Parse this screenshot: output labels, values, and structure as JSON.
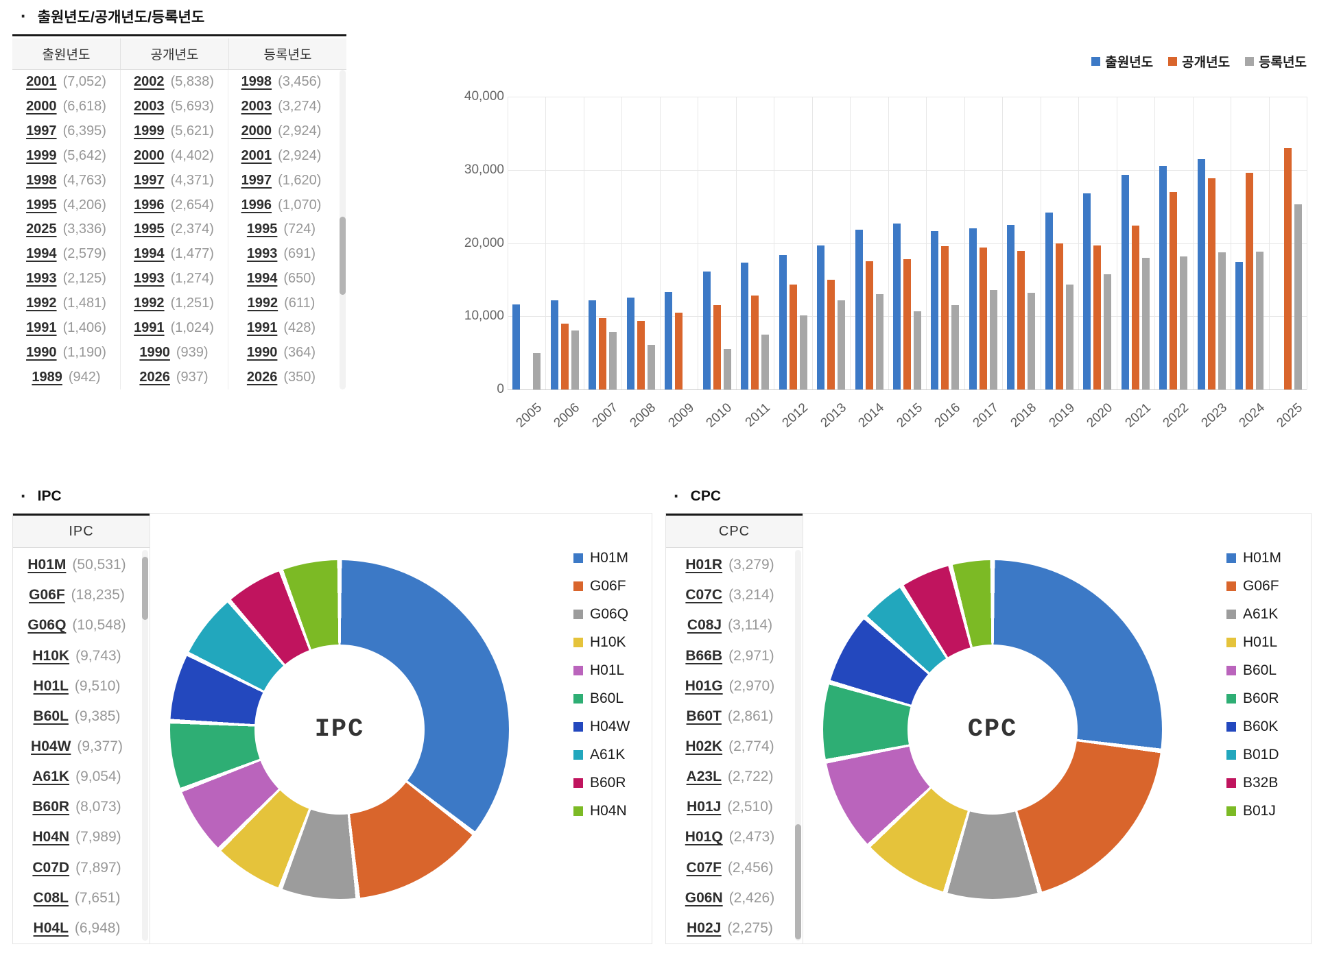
{
  "section_years": {
    "title": "출원년도/공개년도/등록년도",
    "columns": [
      {
        "header": "출원년도",
        "rows": [
          [
            "2001",
            "(7,052)"
          ],
          [
            "2000",
            "(6,618)"
          ],
          [
            "1997",
            "(6,395)"
          ],
          [
            "1999",
            "(5,642)"
          ],
          [
            "1998",
            "(4,763)"
          ],
          [
            "1995",
            "(4,206)"
          ],
          [
            "2025",
            "(3,336)"
          ],
          [
            "1994",
            "(2,579)"
          ],
          [
            "1993",
            "(2,125)"
          ],
          [
            "1992",
            "(1,481)"
          ],
          [
            "1991",
            "(1,406)"
          ],
          [
            "1990",
            "(1,190)"
          ],
          [
            "1989",
            "(942)"
          ]
        ]
      },
      {
        "header": "공개년도",
        "rows": [
          [
            "2002",
            "(5,838)"
          ],
          [
            "2003",
            "(5,693)"
          ],
          [
            "1999",
            "(5,621)"
          ],
          [
            "2000",
            "(4,402)"
          ],
          [
            "1997",
            "(4,371)"
          ],
          [
            "1996",
            "(2,654)"
          ],
          [
            "1995",
            "(2,374)"
          ],
          [
            "1994",
            "(1,477)"
          ],
          [
            "1993",
            "(1,274)"
          ],
          [
            "1992",
            "(1,251)"
          ],
          [
            "1991",
            "(1,024)"
          ],
          [
            "1990",
            "(939)"
          ],
          [
            "2026",
            "(937)"
          ]
        ]
      },
      {
        "header": "등록년도",
        "rows": [
          [
            "1998",
            "(3,456)"
          ],
          [
            "2003",
            "(3,274)"
          ],
          [
            "2000",
            "(2,924)"
          ],
          [
            "2001",
            "(2,924)"
          ],
          [
            "1997",
            "(1,620)"
          ],
          [
            "1996",
            "(1,070)"
          ],
          [
            "1995",
            "(724)"
          ],
          [
            "1993",
            "(691)"
          ],
          [
            "1994",
            "(650)"
          ],
          [
            "1992",
            "(611)"
          ],
          [
            "1991",
            "(428)"
          ],
          [
            "1990",
            "(364)"
          ],
          [
            "2026",
            "(350)"
          ]
        ]
      }
    ]
  },
  "section_ipc": {
    "title": "IPC",
    "table_header": "IPC",
    "rows": [
      [
        "H01M",
        "(50,531)"
      ],
      [
        "G06F",
        "(18,235)"
      ],
      [
        "G06Q",
        "(10,548)"
      ],
      [
        "H10K",
        "(9,743)"
      ],
      [
        "H01L",
        "(9,510)"
      ],
      [
        "B60L",
        "(9,385)"
      ],
      [
        "H04W",
        "(9,377)"
      ],
      [
        "A61K",
        "(9,054)"
      ],
      [
        "B60R",
        "(8,073)"
      ],
      [
        "H04N",
        "(7,989)"
      ],
      [
        "C07D",
        "(7,897)"
      ],
      [
        "C08L",
        "(7,651)"
      ],
      [
        "H04L",
        "(6,948)"
      ]
    ]
  },
  "section_cpc": {
    "title": "CPC",
    "table_header": "CPC",
    "rows": [
      [
        "H01R",
        "(3,279)"
      ],
      [
        "C07C",
        "(3,214)"
      ],
      [
        "C08J",
        "(3,114)"
      ],
      [
        "B66B",
        "(2,971)"
      ],
      [
        "H01G",
        "(2,970)"
      ],
      [
        "B60T",
        "(2,861)"
      ],
      [
        "H02K",
        "(2,774)"
      ],
      [
        "A23L",
        "(2,722)"
      ],
      [
        "H01J",
        "(2,510)"
      ],
      [
        "H01Q",
        "(2,473)"
      ],
      [
        "C07F",
        "(2,456)"
      ],
      [
        "G06N",
        "(2,426)"
      ],
      [
        "H02J",
        "(2,275)"
      ]
    ]
  },
  "chart_data": [
    {
      "type": "bar",
      "title": "출원년도/공개년도/등록년도",
      "x": [
        "2005",
        "2006",
        "2007",
        "2008",
        "2009",
        "2010",
        "2011",
        "2012",
        "2013",
        "2014",
        "2015",
        "2016",
        "2017",
        "2018",
        "2019",
        "2020",
        "2021",
        "2022",
        "2023",
        "2024",
        "2025"
      ],
      "series": [
        {
          "name": "출원년도",
          "color": "#3C79C6",
          "values": [
            11600,
            12200,
            12200,
            12600,
            13300,
            16100,
            17300,
            18400,
            19700,
            21800,
            22700,
            21600,
            22000,
            22500,
            24200,
            26800,
            29300,
            30500,
            31500,
            17400,
            null
          ]
        },
        {
          "name": "공개년도",
          "color": "#D9652C",
          "values": [
            null,
            9000,
            9700,
            9400,
            10500,
            11500,
            12800,
            14300,
            15000,
            17500,
            17800,
            19600,
            19400,
            18900,
            20000,
            19700,
            22400,
            27000,
            28900,
            29600,
            33000
          ]
        },
        {
          "name": "등록년도",
          "color": "#A7A7A7",
          "values": [
            5000,
            8100,
            7900,
            6100,
            null,
            5500,
            7500,
            10100,
            12200,
            13000,
            10700,
            11500,
            13600,
            13200,
            14300,
            15700,
            18000,
            18200,
            18700,
            18800,
            25300
          ]
        }
      ],
      "ylim": [
        0,
        40000
      ],
      "yticks": [
        "0",
        "10,000",
        "20,000",
        "30,000",
        "40,000"
      ],
      "grid": true,
      "legend_position": "top-right",
      "xlabel_rotation": -42
    },
    {
      "type": "pie",
      "title": "IPC",
      "center_label": "IPC",
      "labels": [
        "H01M",
        "G06F",
        "G06Q",
        "H10K",
        "H01L",
        "B60L",
        "H04W",
        "A61K",
        "B60R",
        "H04N"
      ],
      "values": [
        50531,
        18235,
        10548,
        9743,
        9510,
        9385,
        9377,
        9054,
        8073,
        7989
      ],
      "colors": [
        "#3C79C6",
        "#D9652C",
        "#9C9C9C",
        "#E5C33B",
        "#BA64BC",
        "#2EAE74",
        "#2348BE",
        "#22A7BD",
        "#C0145E",
        "#7CBA25"
      ],
      "legend_position": "right"
    },
    {
      "type": "pie",
      "title": "CPC",
      "center_label": "CPC",
      "labels": [
        "H01M",
        "G06F",
        "A61K",
        "H01L",
        "B60L",
        "B60R",
        "B60K",
        "B01D",
        "B32B",
        "B01J"
      ],
      "values_pct": [
        27,
        18.5,
        9,
        8.5,
        9,
        7.5,
        7,
        4.5,
        5,
        4
      ],
      "colors": [
        "#3C79C6",
        "#D9652C",
        "#9C9C9C",
        "#E5C33B",
        "#BA64BC",
        "#2EAE74",
        "#2348BE",
        "#22A7BD",
        "#C0145E",
        "#7CBA25"
      ],
      "legend_position": "right"
    }
  ]
}
